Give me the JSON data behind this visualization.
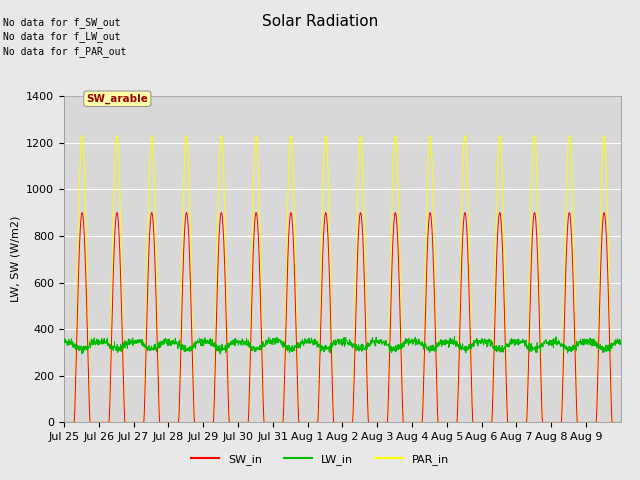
{
  "title": "Solar Radiation",
  "ylabel": "LW, SW (W/m2)",
  "ylim": [
    0,
    1400
  ],
  "yticks": [
    0,
    200,
    400,
    600,
    800,
    1000,
    1200,
    1400
  ],
  "date_labels": [
    "Jul 25",
    "Jul 26",
    "Jul 27",
    "Jul 28",
    "Jul 29",
    "Jul 30",
    "Jul 31",
    "Aug 1",
    "Aug 2",
    "Aug 3",
    "Aug 4",
    "Aug 5",
    "Aug 6",
    "Aug 7",
    "Aug 8",
    "Aug 9"
  ],
  "n_days": 16,
  "sw_peak": 900,
  "lw_base": 345,
  "lw_amp": 30,
  "par_peak": 1230,
  "nodata_texts": [
    "No data for f_SW_out",
    "No data for f_LW_out",
    "No data for f_PAR_out"
  ],
  "tooltip_text": "SW_arable",
  "bg_color": "#e8e8e8",
  "plot_bg": "#d8d8d8",
  "sw_color": "#ff0000",
  "lw_color": "#00bb00",
  "par_color": "#ffff00",
  "grid_color": "#c0c0c0",
  "title_fontsize": 11,
  "label_fontsize": 8,
  "tick_fontsize": 8,
  "steps_per_hour": 6
}
